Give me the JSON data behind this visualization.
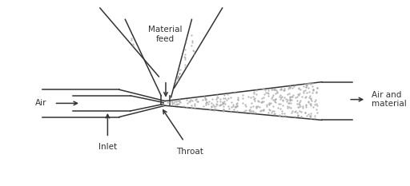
{
  "bg_color": "#ffffff",
  "line_color": "#333333",
  "labels": {
    "material_feed": "Material\nfeed",
    "air": "Air",
    "inlet": "Inlet",
    "throat": "Throat",
    "air_material": "Air and\nmaterial"
  },
  "figsize": [
    5.12,
    2.33
  ],
  "dpi": 100
}
